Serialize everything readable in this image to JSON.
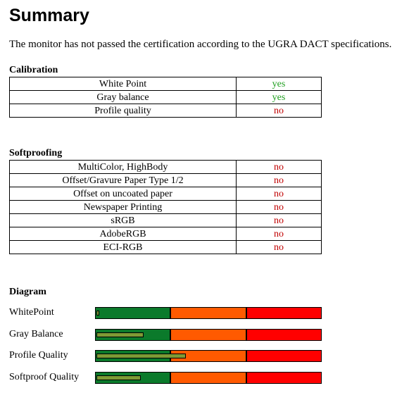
{
  "header": {
    "title": "Summary",
    "text": "The monitor has not passed the certification according to the UGRA DACT specifications."
  },
  "calibration": {
    "title": "Calibration",
    "rows": [
      {
        "label": "White Point",
        "status": "yes",
        "color": "#22a022"
      },
      {
        "label": "Gray balance",
        "status": "yes",
        "color": "#22a022"
      },
      {
        "label": "Profile quality",
        "status": "no",
        "color": "#c00000"
      }
    ]
  },
  "softproofing": {
    "title": "Softproofing",
    "rows": [
      {
        "label": "MultiColor, HighBody",
        "status": "no",
        "color": "#c00000"
      },
      {
        "label": "Offset/Gravure Paper Type 1/2",
        "status": "no",
        "color": "#c00000"
      },
      {
        "label": "Offset on uncoated paper",
        "status": "no",
        "color": "#c00000"
      },
      {
        "label": "Newspaper Printing",
        "status": "no",
        "color": "#c00000"
      },
      {
        "label": "sRGB",
        "status": "no",
        "color": "#c00000"
      },
      {
        "label": "AdobeRGB",
        "status": "no",
        "color": "#c00000"
      },
      {
        "label": "ECI-RGB",
        "status": "no",
        "color": "#c00000"
      }
    ]
  },
  "diagram": {
    "title": "Diagram",
    "xlim": [
      0,
      3
    ],
    "zones": [
      "#0b7a2b",
      "#ff5a00",
      "#ff0000"
    ],
    "indicator_color": "#7e9a35",
    "rows": [
      {
        "label": "WhitePoint",
        "value": 0.05
      },
      {
        "label": "Gray Balance",
        "value": 0.64
      },
      {
        "label": "Profile Quality",
        "value": 1.2
      },
      {
        "label": "Softproof Quality",
        "value": 0.61
      }
    ]
  }
}
